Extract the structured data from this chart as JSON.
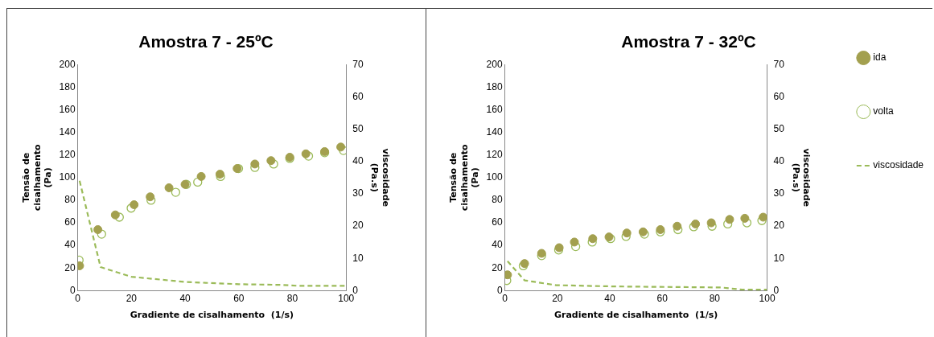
{
  "chart_data": [
    {
      "type": "scatter",
      "title": "Amostra 7 - 25ºC",
      "xlabel": "Gradiente de cisalhamento  (1/s)",
      "ylabel": "Tensão de cisalhamento (Pa)",
      "y2label": "viscosidade (Pa.s)",
      "xlim": [
        0,
        100
      ],
      "xticks": [
        0,
        20,
        40,
        60,
        80,
        100
      ],
      "ylim": [
        0,
        200
      ],
      "yticks": [
        0,
        20,
        40,
        60,
        80,
        100,
        120,
        140,
        160,
        180,
        200
      ],
      "y2lim": [
        0,
        70
      ],
      "y2ticks": [
        0,
        10,
        20,
        30,
        40,
        50,
        60,
        70
      ],
      "grid": false,
      "marker": "circle",
      "series": [
        {
          "color": "#a3a04f",
          "x": [
            0.7,
            7.5,
            14,
            21,
            27,
            34,
            40,
            46,
            53,
            59.4,
            66,
            72,
            79,
            85,
            92,
            98
          ],
          "values": [
            22,
            54,
            67,
            76,
            83,
            91,
            94,
            101,
            103,
            108,
            112,
            115,
            118,
            121,
            123,
            127
          ]
        },
        {
          "color": "#9bbb59",
          "x": [
            0.5,
            8.9,
            15.5,
            19.9,
            27.3,
            36.5,
            40.5,
            44.7,
            53.2,
            59.9,
            66,
            73,
            79,
            86,
            92,
            99
          ],
          "values": [
            27,
            50,
            65,
            73,
            80,
            87,
            94,
            96,
            101,
            108,
            109,
            112,
            117,
            119,
            122,
            124
          ]
        },
        {
          "type": "line",
          "axis": "y2",
          "line_style": "dashed",
          "marker": "none",
          "color": "#9bbb59",
          "x": [
            0.7,
            8.5,
            20,
            40,
            60,
            76,
            82,
            100
          ],
          "values": [
            34,
            7.3,
            4.3,
            2.7,
            2,
            1.8,
            1.5,
            1.5
          ]
        }
      ]
    },
    {
      "type": "scatter",
      "title": "Amostra 7 - 32ºC",
      "xlabel": "Gradiente de cisalhamento  (1/s)",
      "ylabel": "Tensão de cisalhamento (Pa)",
      "y2label": "viscosidade (Pa.s)",
      "xlim": [
        0,
        100
      ],
      "xticks": [
        0,
        20,
        40,
        60,
        80,
        100
      ],
      "ylim": [
        0,
        200
      ],
      "yticks": [
        0,
        20,
        40,
        60,
        80,
        100,
        120,
        140,
        160,
        180,
        200
      ],
      "y2lim": [
        0,
        70
      ],
      "y2ticks": [
        0,
        10,
        20,
        30,
        40,
        50,
        60,
        70
      ],
      "grid": false,
      "marker": "circle",
      "legend": "right",
      "series": [
        {
          "name": "ida",
          "color": "#a3a04f",
          "x": [
            1,
            7.5,
            14,
            20.7,
            26.5,
            33.5,
            39.7,
            46.5,
            52.7,
            59.3,
            65.7,
            72.7,
            78.7,
            85.7,
            91.5,
            98.5
          ],
          "values": [
            14,
            24,
            33,
            38,
            43,
            46,
            47.5,
            51,
            52,
            54,
            57,
            59,
            60,
            63,
            64,
            65
          ]
        },
        {
          "name": "volta",
          "color": "#9bbb59",
          "x": [
            0.7,
            7,
            14,
            20.5,
            27,
            33.3,
            40.3,
            46.2,
            53.2,
            59.3,
            66,
            72,
            79,
            85,
            92.3,
            98
          ],
          "values": [
            9,
            22,
            31,
            36,
            39,
            43,
            46,
            48,
            50,
            52,
            54,
            56.5,
            57,
            59,
            60,
            62
          ]
        },
        {
          "type": "line",
          "name": "viscosidade",
          "axis": "y2",
          "line_style": "dashed",
          "marker": "none",
          "color": "#9bbb59",
          "x": [
            1,
            7.5,
            19.5,
            42.5,
            82.5,
            90.5,
            100
          ],
          "values": [
            9.1,
            3.2,
            1.7,
            1.3,
            1,
            0.3,
            0.3
          ]
        }
      ]
    }
  ]
}
